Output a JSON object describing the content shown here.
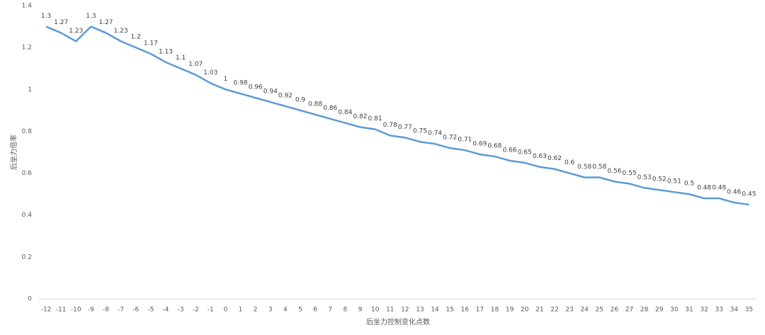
{
  "chart_data": {
    "type": "line",
    "x_label": "后坐力控制变化点数",
    "y_label": "后坐力倍率",
    "categories": [
      "-12",
      "-11",
      "-10",
      "-9",
      "-8",
      "-7",
      "-6",
      "-5",
      "-4",
      "-3",
      "-2",
      "-1",
      "0",
      "1",
      "2",
      "3",
      "4",
      "5",
      "6",
      "7",
      "8",
      "9",
      "10",
      "11",
      "12",
      "13",
      "14",
      "15",
      "16",
      "17",
      "18",
      "19",
      "20",
      "21",
      "22",
      "23",
      "24",
      "25",
      "26",
      "27",
      "28",
      "29",
      "30",
      "31",
      "32",
      "33",
      "34",
      "35"
    ],
    "series": [
      {
        "color": "#5b9bd5",
        "values": [
          1.3,
          1.27,
          1.23,
          1.3,
          1.27,
          1.23,
          1.2,
          1.17,
          1.13,
          1.1,
          1.07,
          1.03,
          1,
          0.98,
          0.96,
          0.94,
          0.92,
          0.9,
          0.88,
          0.86,
          0.84,
          0.82,
          0.81,
          0.78,
          0.77,
          0.75,
          0.74,
          0.72,
          0.71,
          0.69,
          0.68,
          0.66,
          0.65,
          0.63,
          0.62,
          0.6,
          0.58,
          0.58,
          0.56,
          0.55,
          0.53,
          0.52,
          0.51,
          0.5,
          0.48,
          0.48,
          0.46,
          0.45
        ]
      }
    ],
    "ylim": [
      0,
      1.4
    ],
    "yticks": [
      0,
      0.2,
      0.4,
      0.6,
      0.8,
      1,
      1.2,
      1.4
    ],
    "grid": false,
    "data_labels": true
  }
}
